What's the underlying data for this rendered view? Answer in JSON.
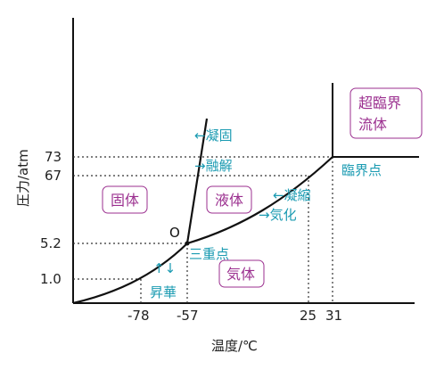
{
  "axes": {
    "x_title": "温度/℃",
    "y_title": "圧力/atm",
    "x_ticks": [
      "-78",
      "-57",
      "25",
      "31"
    ],
    "y_ticks": [
      "73",
      "67",
      "5.2",
      "1.0"
    ]
  },
  "regions": {
    "solid": "固体",
    "liquid": "液体",
    "gas": "気体",
    "supercritical_line1": "超臨界",
    "supercritical_line2": "流体"
  },
  "points": {
    "triple_point_marker": "O",
    "triple_point": "三重点",
    "critical_point": "臨界点"
  },
  "transitions": {
    "freezing": "←凝固",
    "melting": "→融解",
    "condensation": "←凝縮",
    "vaporization": "→気化",
    "sublimation": "昇華",
    "sublimation_arrows": "↑↓"
  },
  "colors": {
    "region_text": "#9b2f8f",
    "annotation_text": "#1b9bb2",
    "region_border": "#9b2f8f"
  },
  "chart_data": {
    "type": "phase-diagram",
    "x_unit": "℃",
    "y_unit": "atm",
    "triple_point": {
      "t": -57,
      "p": 5.2
    },
    "critical_point": {
      "t": 31,
      "p": 73
    },
    "sublimation_reference": {
      "t": -78,
      "p": 1.0
    },
    "vaporization_reference": {
      "t": 25,
      "p": 67
    }
  }
}
